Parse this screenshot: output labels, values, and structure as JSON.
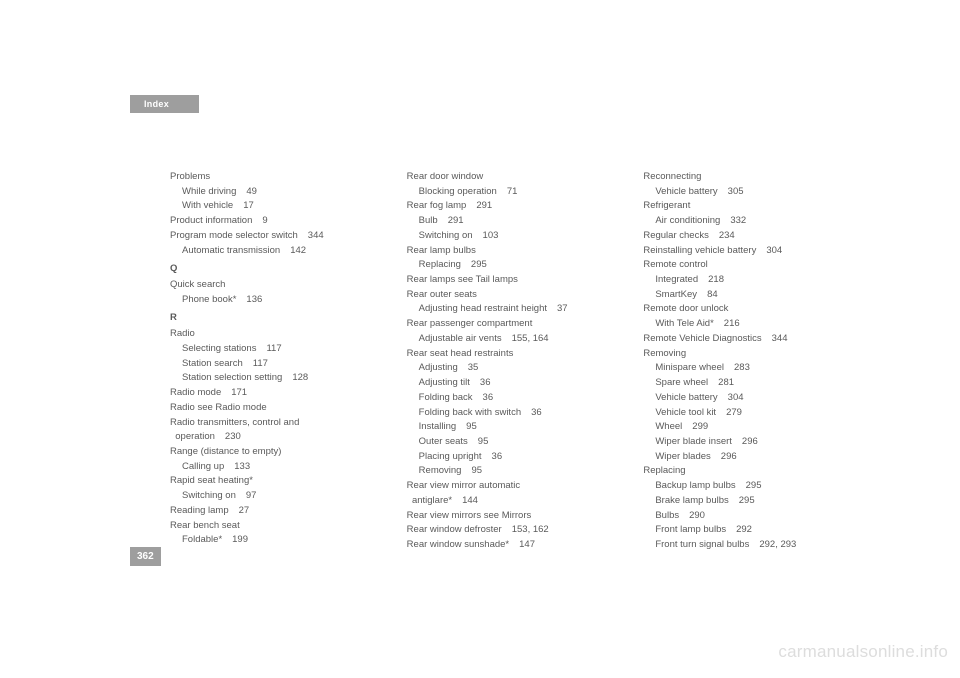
{
  "header": {
    "title": "Index"
  },
  "page_number": "362",
  "watermark": "carmanualsonline.info",
  "columns": [
    [
      {
        "lvl": 1,
        "text": "Problems"
      },
      {
        "lvl": 2,
        "text": "While driving",
        "page": "49"
      },
      {
        "lvl": 2,
        "text": "With vehicle",
        "page": "17"
      },
      {
        "lvl": 1,
        "text": "Product information",
        "page": "9"
      },
      {
        "lvl": 1,
        "text": "Program mode selector switch",
        "page": "344"
      },
      {
        "lvl": 2,
        "text": "Automatic transmission",
        "page": "142"
      },
      {
        "lvl": 1,
        "text": "Q",
        "letter": true
      },
      {
        "lvl": 1,
        "text": "Quick search"
      },
      {
        "lvl": 2,
        "text": "Phone book*",
        "page": "136"
      },
      {
        "lvl": 1,
        "text": "R",
        "letter": true
      },
      {
        "lvl": 1,
        "text": "Radio"
      },
      {
        "lvl": 2,
        "text": "Selecting stations",
        "page": "117"
      },
      {
        "lvl": 2,
        "text": "Station search",
        "page": "117"
      },
      {
        "lvl": 2,
        "text": "Station selection setting",
        "page": "128"
      },
      {
        "lvl": 1,
        "text": "Radio mode",
        "page": "171"
      },
      {
        "lvl": 1,
        "text": "Radio see Radio mode"
      },
      {
        "lvl": 1,
        "text": "Radio transmitters, control and"
      },
      {
        "lvl": 1,
        "text": "  operation",
        "page": "230"
      },
      {
        "lvl": 1,
        "text": "Range (distance to empty)"
      },
      {
        "lvl": 2,
        "text": "Calling up",
        "page": "133"
      },
      {
        "lvl": 1,
        "text": "Rapid seat heating*"
      },
      {
        "lvl": 2,
        "text": "Switching on",
        "page": "97"
      },
      {
        "lvl": 1,
        "text": "Reading lamp",
        "page": "27"
      },
      {
        "lvl": 1,
        "text": "Rear bench seat"
      },
      {
        "lvl": 2,
        "text": "Foldable*",
        "page": "199"
      }
    ],
    [
      {
        "lvl": 1,
        "text": "Rear door window"
      },
      {
        "lvl": 2,
        "text": "Blocking operation",
        "page": "71"
      },
      {
        "lvl": 1,
        "text": "Rear fog lamp",
        "page": "291"
      },
      {
        "lvl": 2,
        "text": "Bulb",
        "page": "291"
      },
      {
        "lvl": 2,
        "text": "Switching on",
        "page": "103"
      },
      {
        "lvl": 1,
        "text": "Rear lamp bulbs"
      },
      {
        "lvl": 2,
        "text": "Replacing",
        "page": "295"
      },
      {
        "lvl": 1,
        "text": "Rear lamps see Tail lamps"
      },
      {
        "lvl": 1,
        "text": "Rear outer seats"
      },
      {
        "lvl": 2,
        "text": "Adjusting head restraint height",
        "page": "37"
      },
      {
        "lvl": 1,
        "text": "Rear passenger compartment"
      },
      {
        "lvl": 2,
        "text": "Adjustable air vents",
        "page": "155, 164"
      },
      {
        "lvl": 1,
        "text": "Rear seat head restraints"
      },
      {
        "lvl": 2,
        "text": "Adjusting",
        "page": "35"
      },
      {
        "lvl": 2,
        "text": "Adjusting tilt",
        "page": "36"
      },
      {
        "lvl": 2,
        "text": "Folding back",
        "page": "36"
      },
      {
        "lvl": 2,
        "text": "Folding back with switch",
        "page": "36"
      },
      {
        "lvl": 2,
        "text": "Installing",
        "page": "95"
      },
      {
        "lvl": 2,
        "text": "Outer seats",
        "page": "95"
      },
      {
        "lvl": 2,
        "text": "Placing upright",
        "page": "36"
      },
      {
        "lvl": 2,
        "text": "Removing",
        "page": "95"
      },
      {
        "lvl": 1,
        "text": "Rear view mirror automatic"
      },
      {
        "lvl": 1,
        "text": "  antiglare*",
        "page": "144"
      },
      {
        "lvl": 1,
        "text": "Rear view mirrors see Mirrors"
      },
      {
        "lvl": 1,
        "text": "Rear window defroster",
        "page": "153, 162"
      },
      {
        "lvl": 1,
        "text": "Rear window sunshade*",
        "page": "147"
      }
    ],
    [
      {
        "lvl": 1,
        "text": "Reconnecting"
      },
      {
        "lvl": 2,
        "text": "Vehicle battery",
        "page": "305"
      },
      {
        "lvl": 1,
        "text": "Refrigerant"
      },
      {
        "lvl": 2,
        "text": "Air conditioning",
        "page": "332"
      },
      {
        "lvl": 1,
        "text": "Regular checks",
        "page": "234"
      },
      {
        "lvl": 1,
        "text": "Reinstalling vehicle battery",
        "page": "304"
      },
      {
        "lvl": 1,
        "text": "Remote control"
      },
      {
        "lvl": 2,
        "text": "Integrated",
        "page": "218"
      },
      {
        "lvl": 2,
        "text": "SmartKey",
        "page": "84"
      },
      {
        "lvl": 1,
        "text": "Remote door unlock"
      },
      {
        "lvl": 2,
        "text": "With Tele Aid*",
        "page": "216"
      },
      {
        "lvl": 1,
        "text": "Remote Vehicle Diagnostics",
        "page": "344"
      },
      {
        "lvl": 1,
        "text": "Removing"
      },
      {
        "lvl": 2,
        "text": "Minispare wheel",
        "page": "283"
      },
      {
        "lvl": 2,
        "text": "Spare wheel",
        "page": "281"
      },
      {
        "lvl": 2,
        "text": "Vehicle battery",
        "page": "304"
      },
      {
        "lvl": 2,
        "text": "Vehicle tool kit",
        "page": "279"
      },
      {
        "lvl": 2,
        "text": "Wheel",
        "page": "299"
      },
      {
        "lvl": 2,
        "text": "Wiper blade insert",
        "page": "296"
      },
      {
        "lvl": 2,
        "text": "Wiper blades",
        "page": "296"
      },
      {
        "lvl": 1,
        "text": "Replacing"
      },
      {
        "lvl": 2,
        "text": "Backup lamp bulbs",
        "page": "295"
      },
      {
        "lvl": 2,
        "text": "Brake lamp bulbs",
        "page": "295"
      },
      {
        "lvl": 2,
        "text": "Bulbs",
        "page": "290"
      },
      {
        "lvl": 2,
        "text": "Front lamp bulbs",
        "page": "292"
      },
      {
        "lvl": 2,
        "text": "Front turn signal bulbs",
        "page": "292, 293"
      }
    ]
  ]
}
